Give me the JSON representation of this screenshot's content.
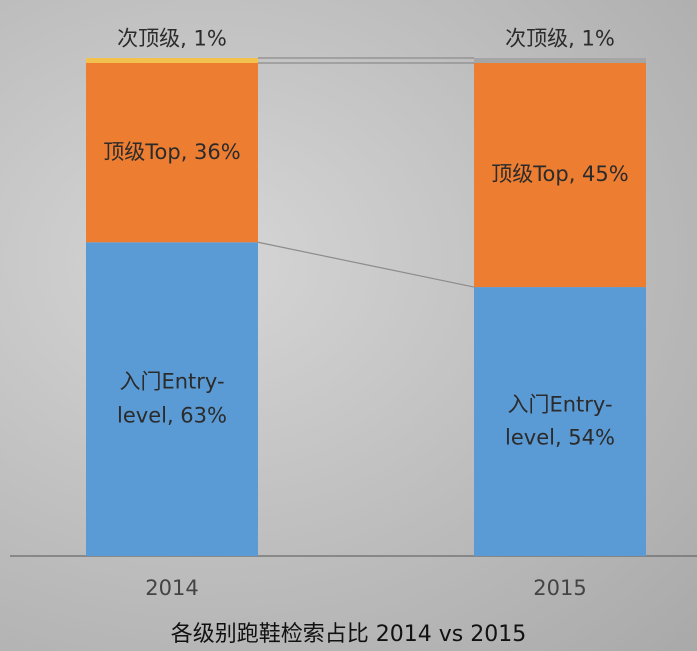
{
  "chart_data": {
    "type": "stacked_bar",
    "title": "各级别跑鞋检索占比 2014 vs 2015",
    "categories": [
      "2014",
      "2015"
    ],
    "ylim": [
      0,
      100
    ],
    "series": [
      {
        "name": "入门Entry-level",
        "color": "#5b9bd5",
        "values": [
          63,
          54
        ],
        "value_labels": [
          "入门Entry-level, 63%",
          "入门Entry-level, 54%"
        ]
      },
      {
        "name": "顶级Top",
        "color": "#ed7d31",
        "values": [
          36,
          45
        ],
        "value_labels": [
          "顶级Top, 36%",
          "顶级Top, 45%"
        ]
      },
      {
        "name": "次顶级",
        "color": "#a5a5a5",
        "colors": [
          "#f2c14e",
          "#a5a5a5"
        ],
        "values": [
          1,
          1
        ],
        "value_labels": [
          "次顶级, 1%",
          "次顶级, 1%"
        ]
      }
    ]
  }
}
